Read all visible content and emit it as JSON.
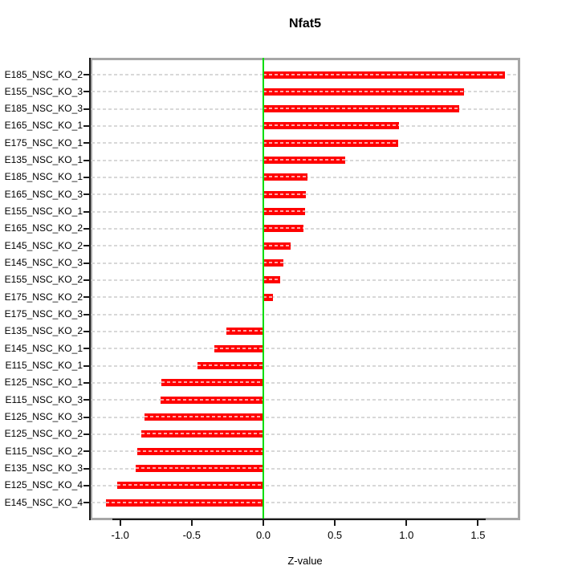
{
  "chart_data": {
    "type": "bar",
    "orientation": "horizontal",
    "title": "Nfat5",
    "xlabel": "Z-value",
    "ylabel": "",
    "xlim": [
      -1.2,
      1.8
    ],
    "grid": "dashed-horizontal",
    "legend": "none",
    "bar_color": "#FF0000",
    "bar_dash_color": "#FFAAAA",
    "zero_line_color": "#00DD00",
    "gridline_color": "#D8D8D8",
    "box_color": "#A6A6A6",
    "x_ticks": [
      -1.0,
      -0.5,
      0.0,
      0.5,
      1.0,
      1.5
    ],
    "x_tick_labels": [
      "-1.0",
      "-0.5",
      "0.0",
      "0.5",
      "1.0",
      "1.5"
    ],
    "categories": [
      "E185_NSC_KO_2",
      "E155_NSC_KO_3",
      "E185_NSC_KO_3",
      "E165_NSC_KO_1",
      "E175_NSC_KO_1",
      "E135_NSC_KO_1",
      "E185_NSC_KO_1",
      "E165_NSC_KO_3",
      "E155_NSC_KO_1",
      "E165_NSC_KO_2",
      "E145_NSC_KO_2",
      "E145_NSC_KO_3",
      "E155_NSC_KO_2",
      "E175_NSC_KO_2",
      "E175_NSC_KO_3",
      "E135_NSC_KO_2",
      "E145_NSC_KO_1",
      "E115_NSC_KO_1",
      "E125_NSC_KO_1",
      "E115_NSC_KO_3",
      "E125_NSC_KO_3",
      "E125_NSC_KO_2",
      "E115_NSC_KO_2",
      "E135_NSC_KO_3",
      "E125_NSC_KO_4",
      "E145_NSC_KO_4"
    ],
    "values": [
      1.69,
      1.4,
      1.37,
      0.95,
      0.94,
      0.57,
      0.31,
      0.3,
      0.29,
      0.28,
      0.19,
      0.14,
      0.12,
      0.07,
      0.0,
      -0.26,
      -0.34,
      -0.46,
      -0.71,
      -0.72,
      -0.83,
      -0.85,
      -0.88,
      -0.89,
      -1.02,
      -1.1
    ]
  }
}
